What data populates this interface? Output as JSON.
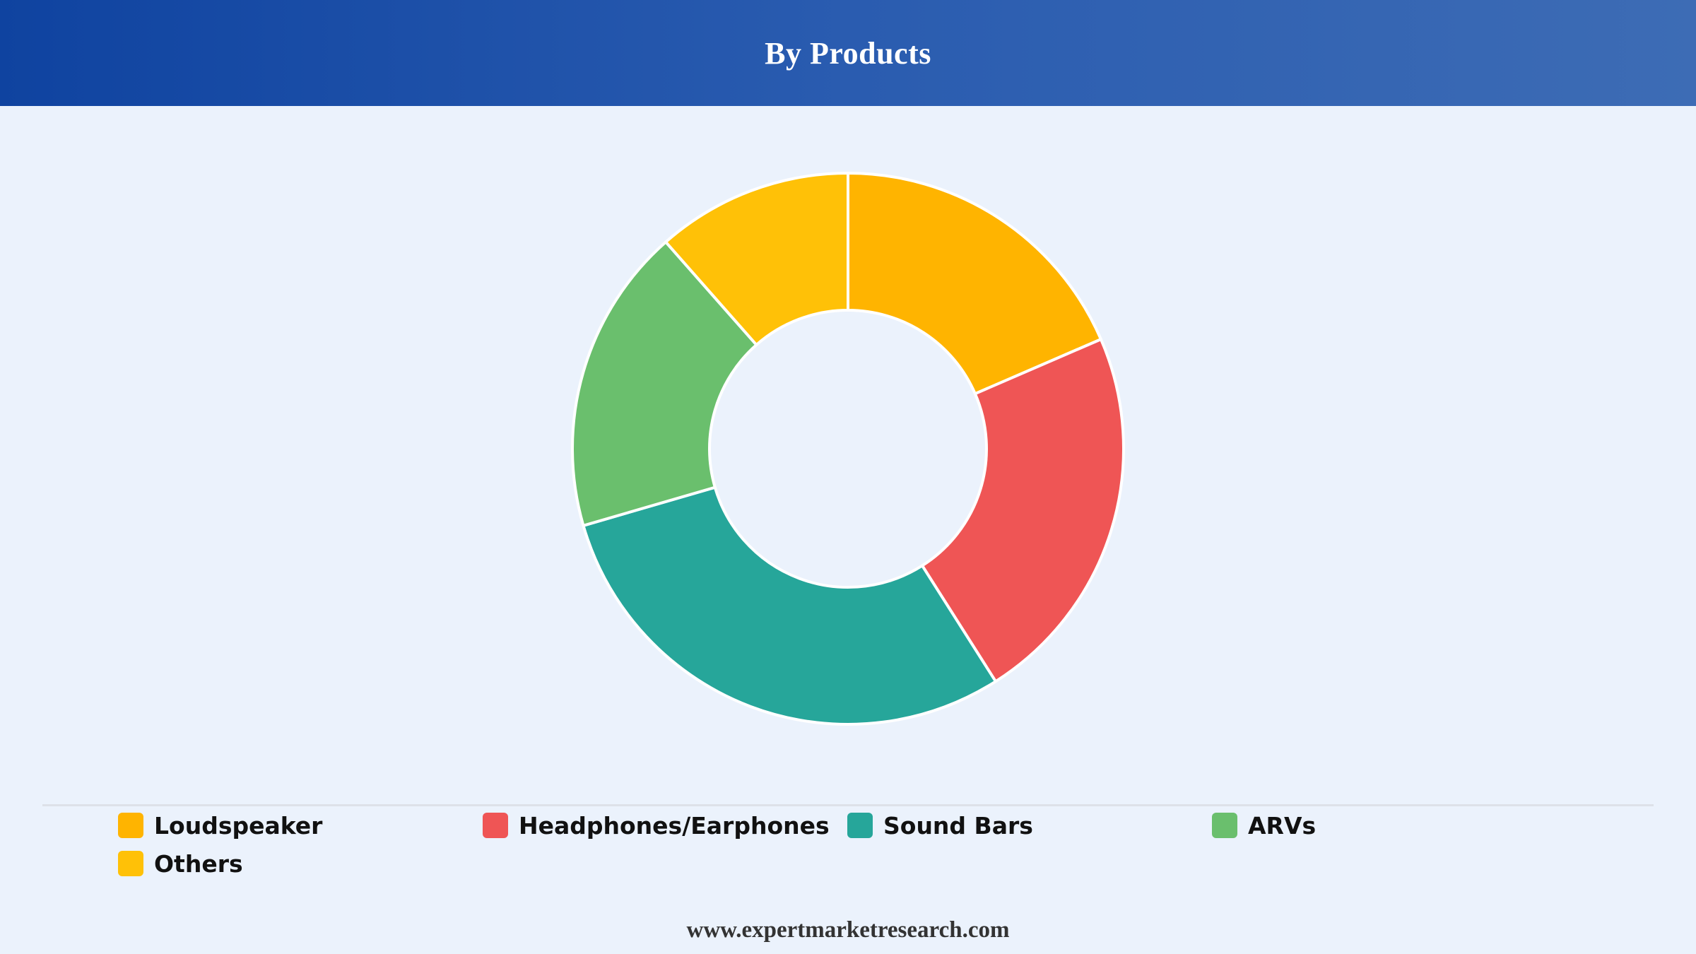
{
  "header": {
    "title": "By Products"
  },
  "chart_data": {
    "type": "pie",
    "title": "By Products",
    "donut": true,
    "categories": [
      "Loudspeaker",
      "Headphones/Earphones",
      "Sound Bars",
      "ARVs",
      "Others"
    ],
    "values": [
      18.5,
      22.5,
      29.5,
      18,
      11.5
    ],
    "colors": [
      "#ffb400",
      "#ef5555",
      "#26a69a",
      "#6abf6d",
      "#ffc107"
    ],
    "legend_position": "bottom"
  },
  "legend": {
    "items": [
      {
        "label": "Loudspeaker",
        "color": "#ffb400"
      },
      {
        "label": "Headphones/Earphones",
        "color": "#ef5555"
      },
      {
        "label": "Sound Bars",
        "color": "#26a69a"
      },
      {
        "label": "ARVs",
        "color": "#6abf6d"
      },
      {
        "label": "Others",
        "color": "#ffc107"
      }
    ]
  },
  "footer": {
    "text": "www.expertmarketresearch.com"
  }
}
